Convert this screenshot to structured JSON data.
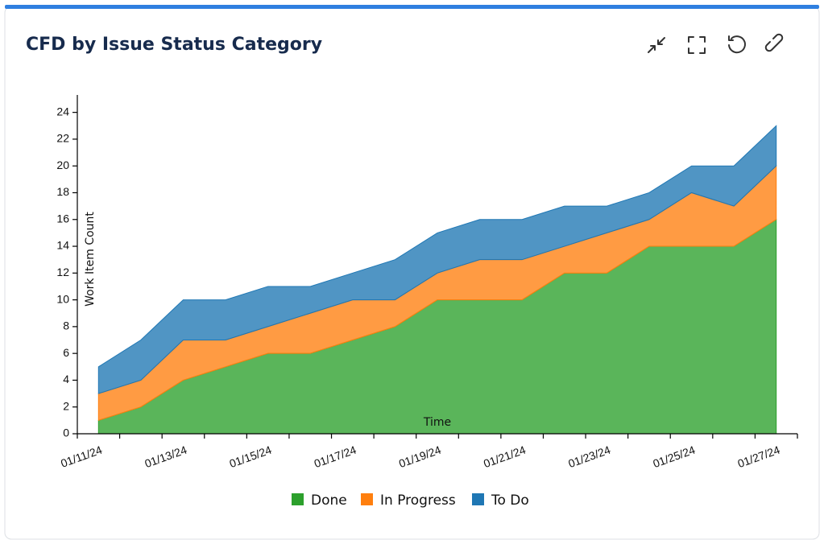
{
  "chart_data": {
    "type": "stacked-area",
    "title": "CFD by Issue Status Category",
    "x_label": "Time",
    "y_label": "Work Item Count",
    "categories": [
      "01/11/24",
      null,
      "01/13/24",
      null,
      "01/15/24",
      null,
      "01/17/24",
      null,
      "01/19/24",
      null,
      "01/21/24",
      null,
      "01/23/24",
      null,
      "01/25/24",
      null,
      "01/27/24"
    ],
    "series": [
      {
        "name": "Done",
        "color": "#2ca02c",
        "values": [
          1,
          2,
          4,
          5,
          6,
          6,
          7,
          8,
          10,
          10,
          10,
          12,
          12,
          14,
          14,
          14,
          16
        ]
      },
      {
        "name": "In Progress",
        "color": "#ff7f0e",
        "values": [
          2,
          2,
          3,
          2,
          2,
          3,
          3,
          2,
          2,
          3,
          3,
          2,
          3,
          2,
          4,
          3,
          4
        ]
      },
      {
        "name": "To Do",
        "color": "#1f77b4",
        "values": [
          2,
          3,
          3,
          3,
          3,
          2,
          2,
          3,
          3,
          3,
          3,
          3,
          2,
          2,
          2,
          3,
          3
        ]
      }
    ],
    "ylim": [
      0,
      25
    ],
    "yticks": [
      0,
      2,
      4,
      6,
      8,
      10,
      12,
      14,
      16,
      18,
      20,
      22,
      24
    ],
    "legend": "bottom"
  }
}
